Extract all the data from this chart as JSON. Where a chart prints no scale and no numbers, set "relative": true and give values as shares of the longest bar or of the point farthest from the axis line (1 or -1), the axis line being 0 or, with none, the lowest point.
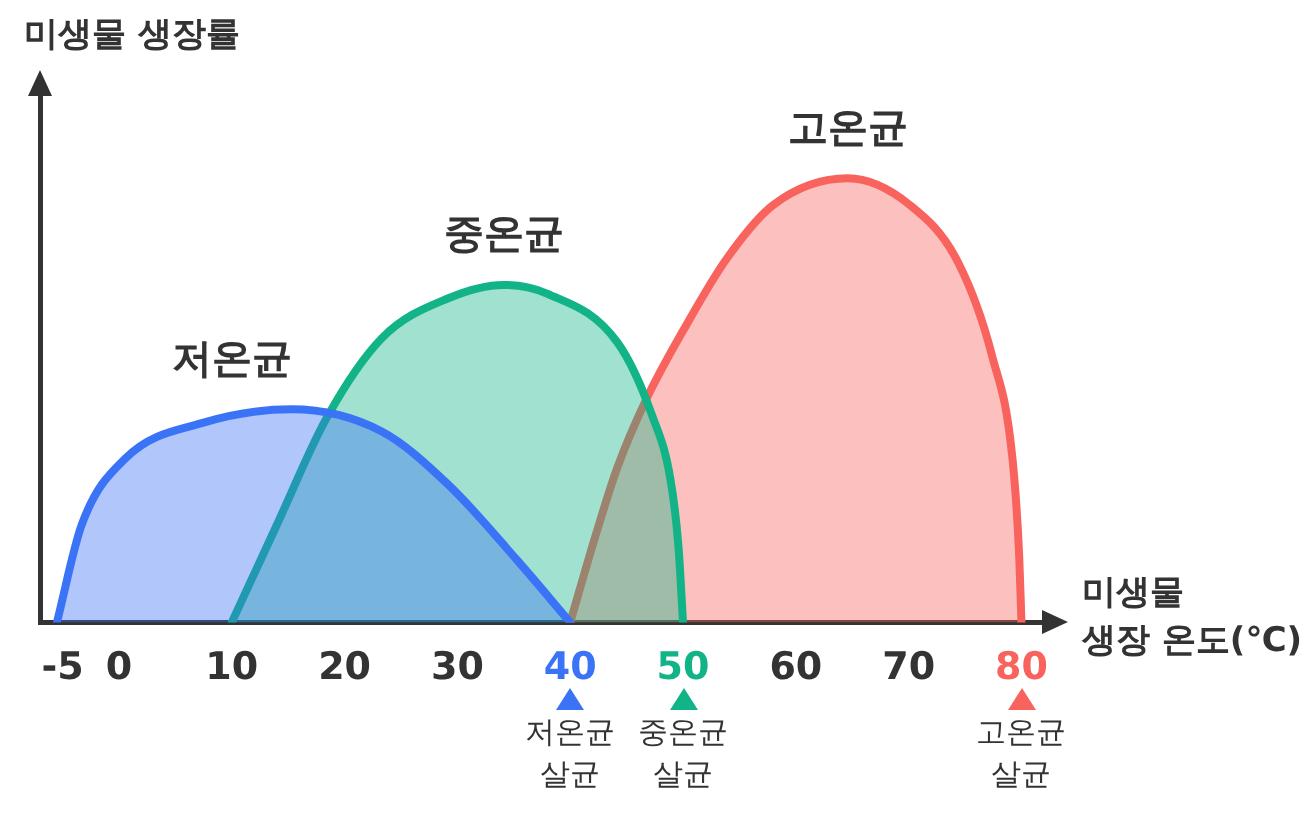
{
  "chart_data": {
    "type": "area",
    "ylabel": "미생물 생장률",
    "xlabel": "미생물 생장 온도(℃)",
    "relative": true,
    "xlim": [
      -7,
      82
    ],
    "xticks": [
      -5,
      0,
      10,
      20,
      30,
      40,
      50,
      60,
      70,
      80
    ],
    "series": [
      {
        "name": "저온균",
        "color": "#3b73f6",
        "x": [
          -5.5,
          -3.3,
          0.6,
          7.5,
          15.3,
          23.3,
          29.2,
          35.3,
          40
        ],
        "values": [
          0,
          0.22,
          0.37,
          0.45,
          0.48,
          0.43,
          0.31,
          0.14,
          0
        ]
      },
      {
        "name": "중온균",
        "color": "#12b386",
        "x": [
          10,
          14,
          18.4,
          23.3,
          29.2,
          34.1,
          38,
          44.2,
          47.2,
          48.9,
          49.6,
          50
        ],
        "values": [
          0,
          0.22,
          0.46,
          0.64,
          0.73,
          0.76,
          0.74,
          0.63,
          0.47,
          0.32,
          0.17,
          0
        ]
      },
      {
        "name": "고온균",
        "color": "#f8635d",
        "x": [
          40,
          42.3,
          44.2,
          46.7,
          50.3,
          53.9,
          58,
          64.6,
          70.1,
          74.4,
          77.4,
          79.2,
          79.8,
          80
        ],
        "values": [
          0,
          0.2,
          0.35,
          0.5,
          0.67,
          0.82,
          0.94,
          1,
          0.94,
          0.81,
          0.6,
          0.37,
          0.15,
          0
        ]
      }
    ],
    "annotations": [
      "저온균 살균",
      "중온균 살균",
      "고온균 살균"
    ]
  }
}
